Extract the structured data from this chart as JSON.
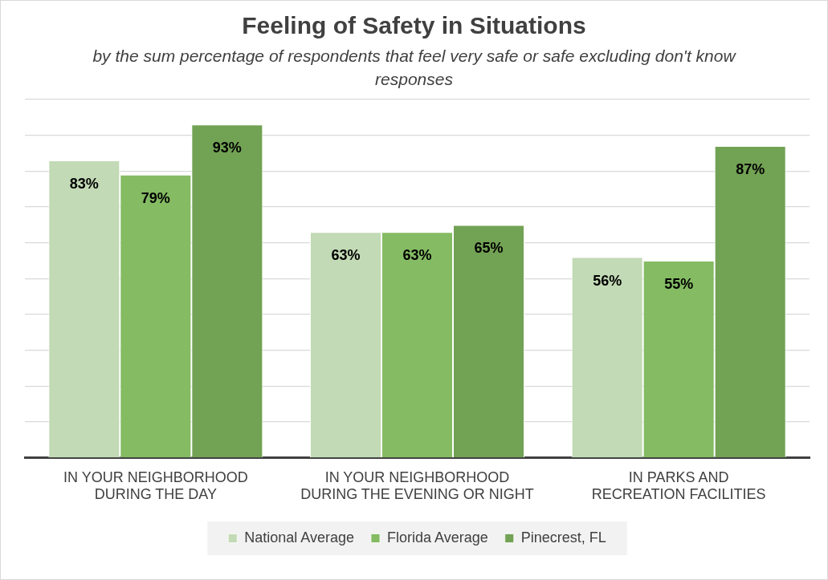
{
  "chart_data": {
    "type": "bar",
    "title": "Feeling of Safety in Situations",
    "subtitle": "by the sum percentage of respondents that feel very safe or safe excluding don't know responses",
    "categories": [
      "IN YOUR NEIGHBORHOOD DURING THE DAY",
      "IN YOUR NEIGHBORHOOD DURING THE EVENING OR NIGHT",
      "IN PARKS AND RECREATION FACILITIES"
    ],
    "series": [
      {
        "name": "National Average",
        "color": "#c2dab5",
        "values": [
          83,
          63,
          56
        ],
        "value_labels": [
          "83%",
          "63%",
          "56%"
        ]
      },
      {
        "name": "Florida Average",
        "color": "#84bb63",
        "values": [
          79,
          63,
          55
        ],
        "value_labels": [
          "79%",
          "63%",
          "55%"
        ]
      },
      {
        "name": "Pinecrest, FL",
        "color": "#72a254",
        "values": [
          93,
          65,
          87
        ],
        "value_labels": [
          "93%",
          "65%",
          "87%"
        ]
      }
    ],
    "ylim": [
      0,
      100
    ],
    "yticks": [
      {
        "value": 0,
        "label": null
      },
      {
        "value": 10,
        "label": null
      },
      {
        "value": 20,
        "label": null
      },
      {
        "value": 30,
        "label": null
      },
      {
        "value": 40,
        "label": null
      },
      {
        "value": 50,
        "label": null
      },
      {
        "value": 60,
        "label": null
      },
      {
        "value": 70,
        "label": null
      },
      {
        "value": 80,
        "label": null
      },
      {
        "value": 90,
        "label": null
      },
      {
        "value": 100,
        "label": null
      }
    ],
    "grid": "y",
    "legend": "bottom",
    "tick_labels": "x"
  }
}
